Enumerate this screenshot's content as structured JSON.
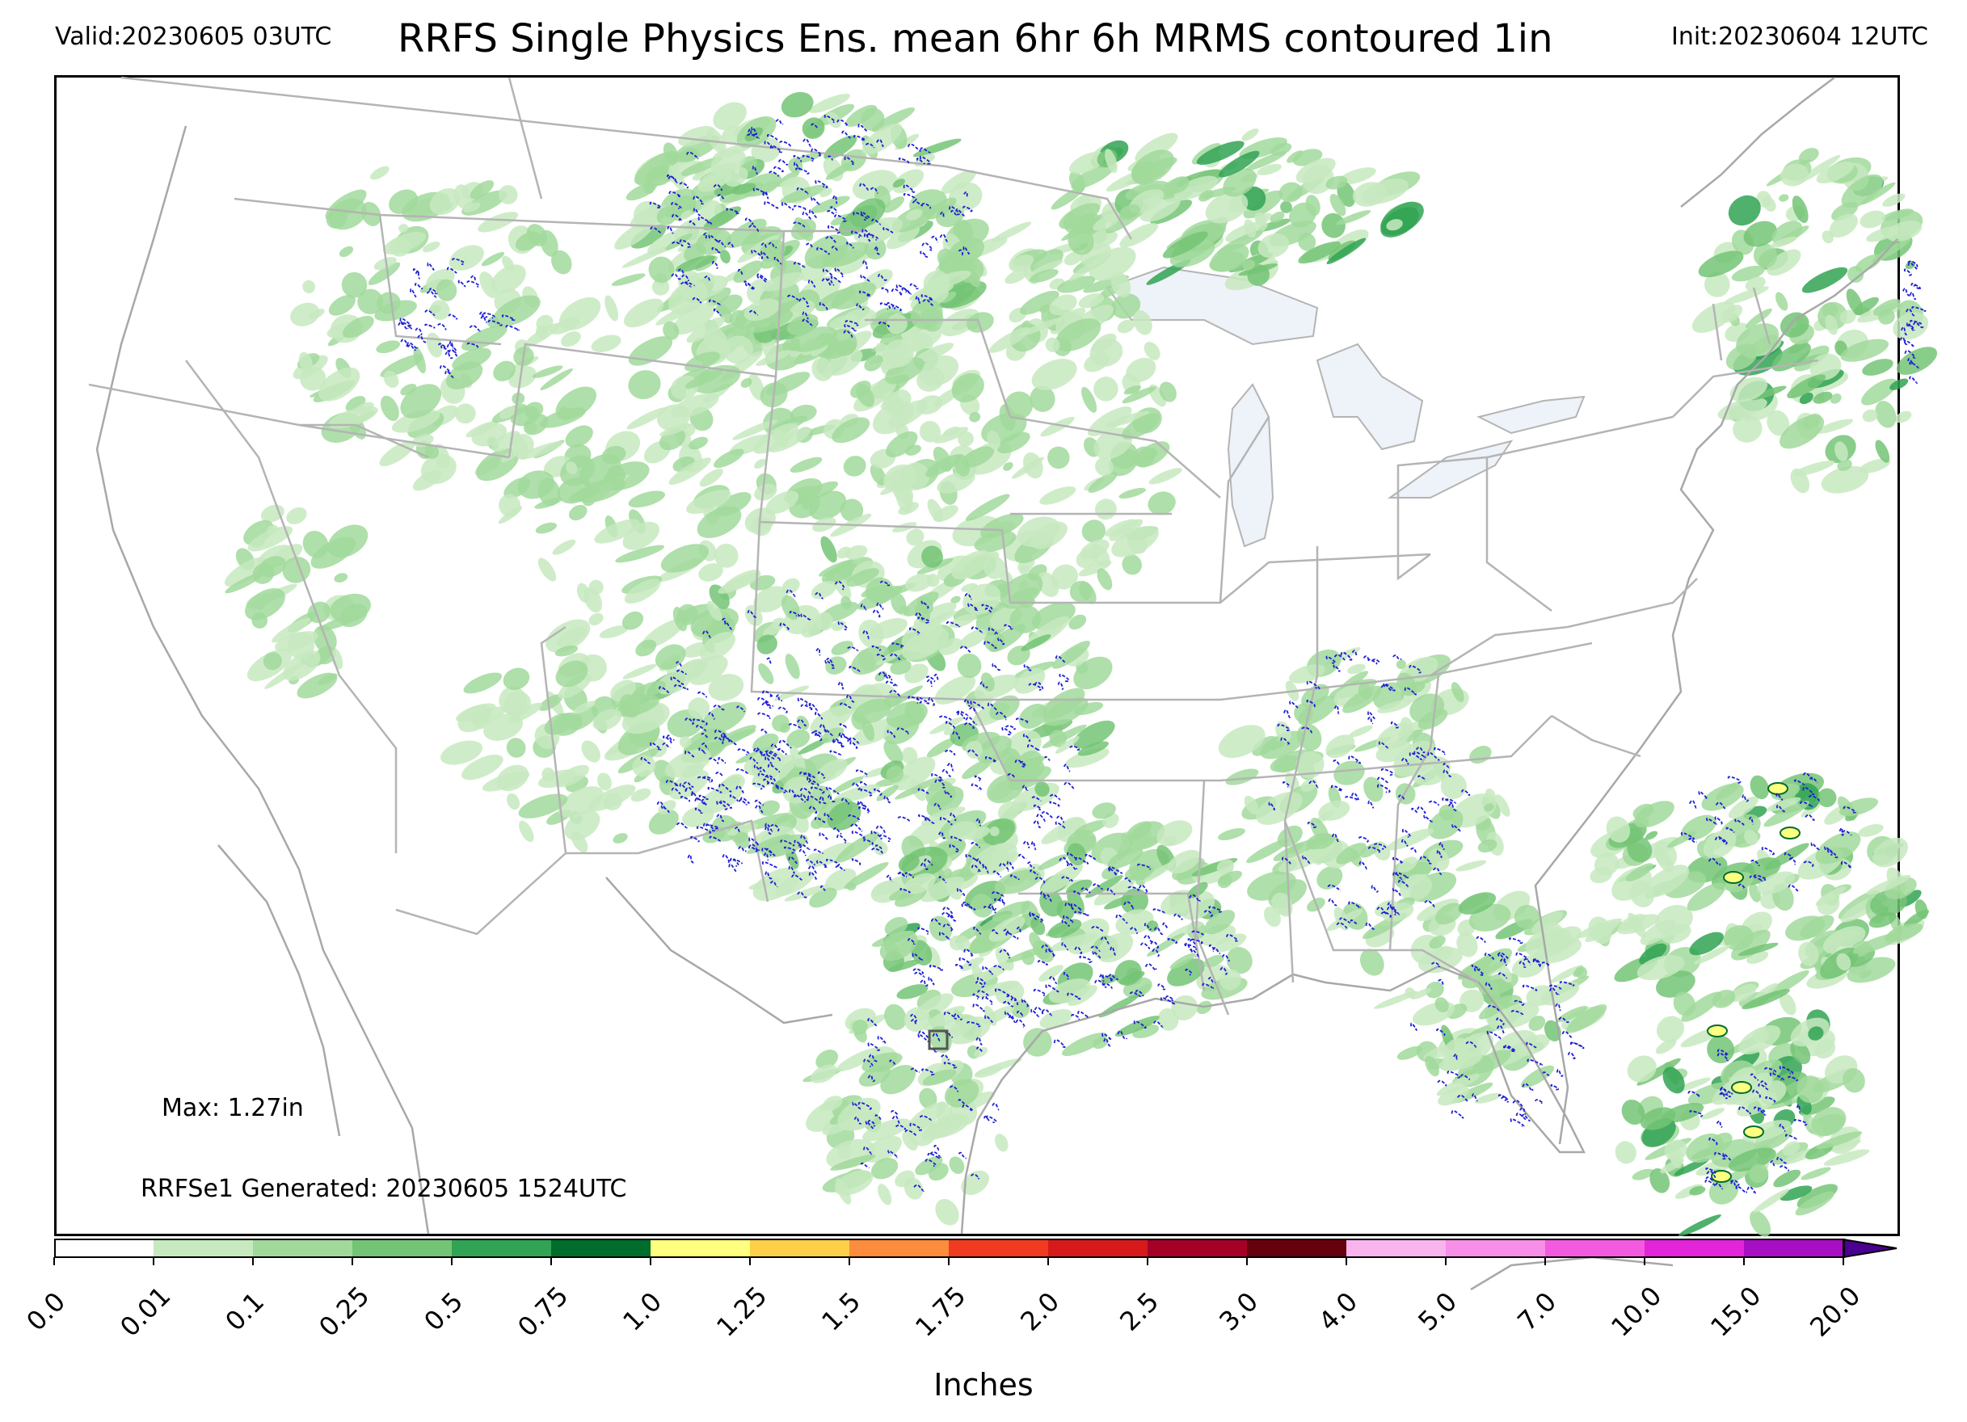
{
  "header": {
    "valid": "Valid:20230605 03UTC",
    "title": "RRFS Single Physics Ens. mean 6hr 6h MRMS contoured 1in",
    "init": "Init:20230604 12UTC"
  },
  "map": {
    "max_label": "Max: 1.27in",
    "generated_label": "RRFSe1 Generated: 20230605 1524UTC",
    "colors": {
      "light_green": "#c7e9c0",
      "green2": "#a1d99b",
      "green3": "#74c476",
      "green4": "#31a354",
      "dark_green": "#006d2c",
      "contour_blue": "#1f1fd6",
      "borders": "#b4b4b4",
      "lakes": "#eef2f9"
    }
  },
  "colorbar": {
    "title": "Inches",
    "ticks": [
      "0.0",
      "0.01",
      "0.1",
      "0.25",
      "0.5",
      "0.75",
      "1.0",
      "1.25",
      "1.5",
      "1.75",
      "2.0",
      "2.5",
      "3.0",
      "4.0",
      "5.0",
      "7.0",
      "10.0",
      "15.0",
      "20.0"
    ],
    "colors": [
      "#ffffff",
      "#c7e9c0",
      "#a1d99b",
      "#74c476",
      "#31a354",
      "#006d2c",
      "#ffff80",
      "#fdd049",
      "#fd8d3c",
      "#f03b20",
      "#d7191c",
      "#a50026",
      "#67000d",
      "#f9b4ee",
      "#f78fe9",
      "#f45ae0",
      "#e225d8",
      "#a80ec4"
    ],
    "extend_color": "#4a0090"
  }
}
